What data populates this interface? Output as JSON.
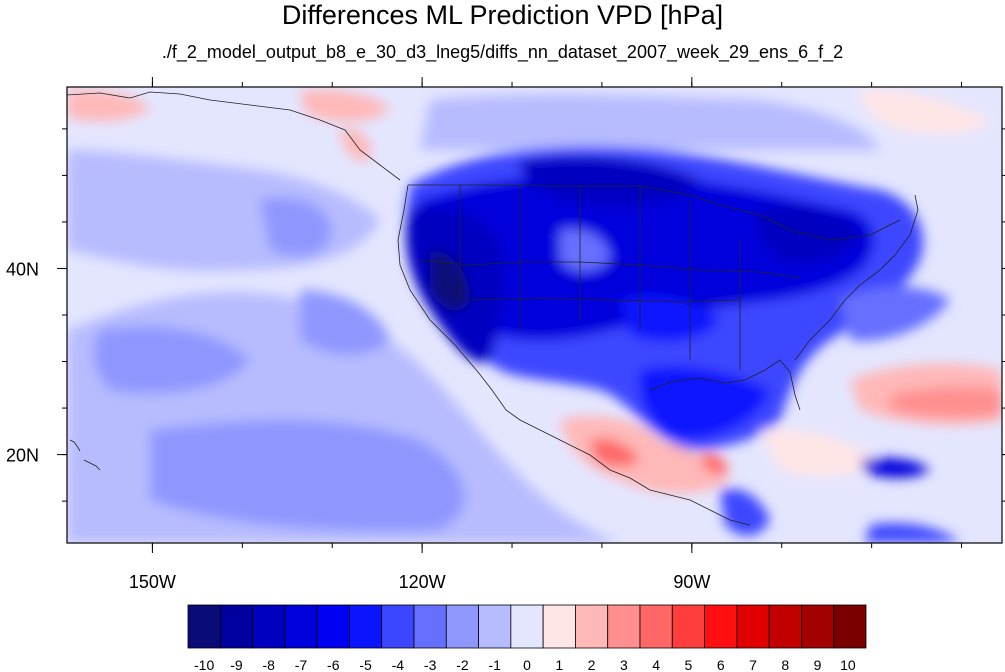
{
  "title": "Differences ML Prediction VPD [hPa]",
  "subtitle": "./f_2_model_output_b8_e_30_d3_lneg5/diffs_nn_dataset_2007_week_29_ens_6_f_2",
  "map": {
    "lon_range": [
      -159.5,
      -55.5
    ],
    "lat_range": [
      10.5,
      59.5
    ],
    "x_ticks": [
      {
        "lon": -150,
        "label": "150W"
      },
      {
        "lon": -120,
        "label": "120W"
      },
      {
        "lon": -90,
        "label": "90W"
      }
    ],
    "y_ticks": [
      {
        "lat": 40,
        "label": "40N"
      },
      {
        "lat": 20,
        "label": "20N"
      }
    ],
    "minor_lon_step": 10,
    "minor_lat_step": 5
  },
  "colorbar": {
    "labels": [
      "-10",
      "-9",
      "-8",
      "-7",
      "-6",
      "-5",
      "-4",
      "-3",
      "-2",
      "-1",
      "0",
      "1",
      "2",
      "3",
      "4",
      "5",
      "6",
      "7",
      "8",
      "9",
      "10"
    ],
    "colors": [
      "#0a0a78",
      "#00009f",
      "#0000c1",
      "#0000dc",
      "#0000f2",
      "#0a14ff",
      "#3c46ff",
      "#6670ff",
      "#8f97ff",
      "#b7bcff",
      "#e4e6ff",
      "#ffe6e6",
      "#ffb8b8",
      "#ff8f8f",
      "#ff6666",
      "#ff3d3d",
      "#ff0f0f",
      "#e00000",
      "#c20000",
      "#a30000",
      "#7a0000"
    ]
  }
}
